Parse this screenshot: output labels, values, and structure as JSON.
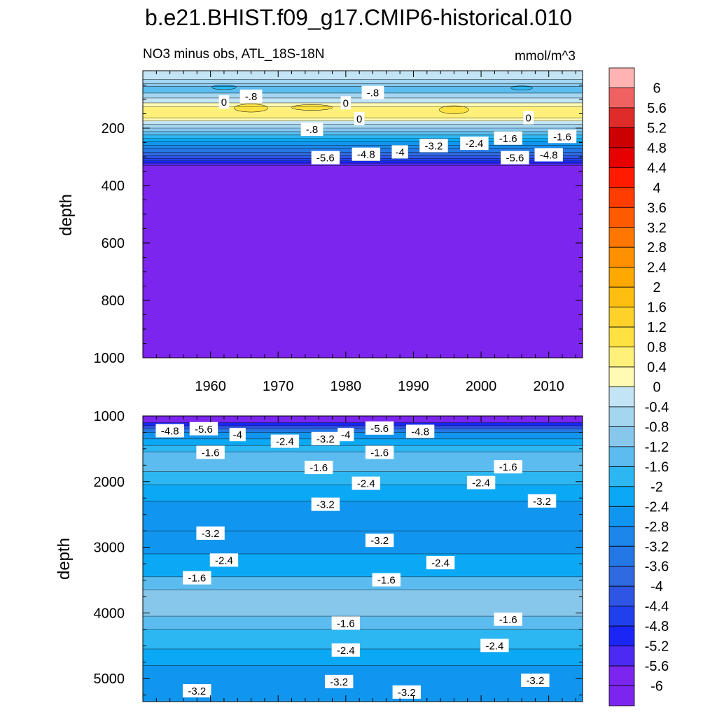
{
  "title": "b.e21.BHIST.f09_g17.CMIP6-historical.010",
  "chart_data": [
    {
      "type": "contour",
      "subtitle_left": "NO3 minus obs, ATL_18S-18N",
      "subtitle_right": "mmol/m^3",
      "ylabel": "depth",
      "xlim": [
        1950,
        2015
      ],
      "ylim": [
        1000,
        0
      ],
      "x_ticks": [
        1960,
        1970,
        1980,
        1990,
        2000,
        2010
      ],
      "x_tick_labels": [
        "1960",
        "1970",
        "1980",
        "1990",
        "2000",
        "2010"
      ],
      "y_ticks": [
        200,
        400,
        600,
        800,
        1000
      ],
      "y_tick_labels": [
        "200",
        "400",
        "600",
        "800",
        "1000"
      ],
      "bands": [
        {
          "top": 0,
          "bottom": 30,
          "level": "-0.4"
        },
        {
          "top": 30,
          "bottom": 45,
          "level": "-0.8"
        },
        {
          "top": 45,
          "bottom": 55,
          "level": "-1.2"
        },
        {
          "top": 55,
          "bottom": 78,
          "level": "-1.6"
        },
        {
          "top": 78,
          "bottom": 95,
          "level": "-0.8"
        },
        {
          "top": 95,
          "bottom": 112,
          "level": "-0.4"
        },
        {
          "top": 112,
          "bottom": 125,
          "level": "0"
        },
        {
          "top": 125,
          "bottom": 165,
          "level": "0.4"
        },
        {
          "top": 165,
          "bottom": 175,
          "level": "0"
        },
        {
          "top": 175,
          "bottom": 187,
          "level": "-0.4"
        },
        {
          "top": 187,
          "bottom": 200,
          "level": "-0.8"
        },
        {
          "top": 200,
          "bottom": 212,
          "level": "-1.2"
        },
        {
          "top": 212,
          "bottom": 224,
          "level": "-1.6"
        },
        {
          "top": 224,
          "bottom": 236,
          "level": "-2"
        },
        {
          "top": 236,
          "bottom": 248,
          "level": "-2.4"
        },
        {
          "top": 248,
          "bottom": 260,
          "level": "-2.8"
        },
        {
          "top": 260,
          "bottom": 272,
          "level": "-3.2"
        },
        {
          "top": 272,
          "bottom": 284,
          "level": "-3.6"
        },
        {
          "top": 284,
          "bottom": 296,
          "level": "-4"
        },
        {
          "top": 296,
          "bottom": 306,
          "level": "-4.4"
        },
        {
          "top": 306,
          "bottom": 314,
          "level": "-4.8"
        },
        {
          "top": 314,
          "bottom": 322,
          "level": "-5.2"
        },
        {
          "top": 322,
          "bottom": 330,
          "level": "-5.6"
        },
        {
          "top": 330,
          "bottom": 1000,
          "level": "-6"
        }
      ],
      "blobs": [
        {
          "x": 1966,
          "depth": 130,
          "level": "0.8",
          "rx": 2.5,
          "ry": 14
        },
        {
          "x": 1975,
          "depth": 128,
          "level": "0.8",
          "rx": 3,
          "ry": 10
        },
        {
          "x": 1996,
          "depth": 136,
          "level": "0.8",
          "rx": 2.2,
          "ry": 14
        },
        {
          "x": 1962,
          "depth": 58,
          "level": "-2",
          "rx": 1.8,
          "ry": 8
        },
        {
          "x": 1984,
          "depth": 62,
          "level": "-2",
          "rx": 1.5,
          "ry": 7
        },
        {
          "x": 2006,
          "depth": 60,
          "level": "-2",
          "rx": 1.6,
          "ry": 7
        }
      ],
      "contour_labels": [
        {
          "text": "0",
          "x": 1962,
          "depth": 110
        },
        {
          "text": "-.8",
          "x": 1966,
          "depth": 90
        },
        {
          "text": "0",
          "x": 1980,
          "depth": 113
        },
        {
          "text": "-.8",
          "x": 1984,
          "depth": 77
        },
        {
          "text": "0",
          "x": 1982,
          "depth": 168
        },
        {
          "text": "0",
          "x": 2007,
          "depth": 165
        },
        {
          "text": "-.8",
          "x": 1975,
          "depth": 205
        },
        {
          "text": "-1.6",
          "x": 2004,
          "depth": 236
        },
        {
          "text": "-1.6",
          "x": 2012,
          "depth": 230
        },
        {
          "text": "-2.4",
          "x": 1999,
          "depth": 254
        },
        {
          "text": "-3.2",
          "x": 1993,
          "depth": 262
        },
        {
          "text": "-4",
          "x": 1988,
          "depth": 284
        },
        {
          "text": "-4.8",
          "x": 1983,
          "depth": 292
        },
        {
          "text": "-5.6",
          "x": 1977,
          "depth": 304
        },
        {
          "text": "-5.6",
          "x": 2005,
          "depth": 304
        },
        {
          "text": "-4.8",
          "x": 2010,
          "depth": 294
        }
      ]
    },
    {
      "type": "contour",
      "ylabel": "depth",
      "xlim": [
        1950,
        2015
      ],
      "ylim": [
        5350,
        1000
      ],
      "x_ticks": [
        1960,
        1970,
        1980,
        1990,
        2000,
        2010
      ],
      "y_ticks": [
        1000,
        2000,
        3000,
        4000,
        5000
      ],
      "y_tick_labels": [
        "1000",
        "2000",
        "3000",
        "4000",
        "5000"
      ],
      "bands": [
        {
          "top": 1000,
          "bottom": 1100,
          "level": "-6"
        },
        {
          "top": 1100,
          "bottom": 1150,
          "level": "-5.2"
        },
        {
          "top": 1150,
          "bottom": 1200,
          "level": "-4.4"
        },
        {
          "top": 1200,
          "bottom": 1250,
          "level": "-3.6"
        },
        {
          "top": 1250,
          "bottom": 1350,
          "level": "-2.8"
        },
        {
          "top": 1350,
          "bottom": 1450,
          "level": "-2.4"
        },
        {
          "top": 1450,
          "bottom": 1550,
          "level": "-2"
        },
        {
          "top": 1550,
          "bottom": 1850,
          "level": "-1.6"
        },
        {
          "top": 1850,
          "bottom": 2050,
          "level": "-2"
        },
        {
          "top": 2050,
          "bottom": 2300,
          "level": "-2.4"
        },
        {
          "top": 2300,
          "bottom": 2750,
          "level": "-2.8"
        },
        {
          "top": 2750,
          "bottom": 3100,
          "level": "-2.8"
        },
        {
          "top": 3100,
          "bottom": 3450,
          "level": "-2.4"
        },
        {
          "top": 3450,
          "bottom": 3650,
          "level": "-1.6"
        },
        {
          "top": 3650,
          "bottom": 4050,
          "level": "-1.2"
        },
        {
          "top": 4050,
          "bottom": 4250,
          "level": "-1.6"
        },
        {
          "top": 4250,
          "bottom": 4550,
          "level": "-2"
        },
        {
          "top": 4550,
          "bottom": 4800,
          "level": "-2.4"
        },
        {
          "top": 4800,
          "bottom": 5350,
          "level": "-2.8"
        }
      ],
      "contour_labels": [
        {
          "text": "-4.8",
          "x": 1954,
          "depth": 1230
        },
        {
          "text": "-5.6",
          "x": 1959,
          "depth": 1200
        },
        {
          "text": "-4",
          "x": 1964,
          "depth": 1290
        },
        {
          "text": "-2.4",
          "x": 1971,
          "depth": 1390
        },
        {
          "text": "-3.2",
          "x": 1977,
          "depth": 1350
        },
        {
          "text": "-4",
          "x": 1980,
          "depth": 1290
        },
        {
          "text": "-5.6",
          "x": 1985,
          "depth": 1190
        },
        {
          "text": "-4.8",
          "x": 1991,
          "depth": 1240
        },
        {
          "text": "-1.6",
          "x": 1960,
          "depth": 1560
        },
        {
          "text": "-1.6",
          "x": 1985,
          "depth": 1560
        },
        {
          "text": "-1.6",
          "x": 1976,
          "depth": 1790
        },
        {
          "text": "-1.6",
          "x": 2004,
          "depth": 1780
        },
        {
          "text": "-2.4",
          "x": 1983,
          "depth": 2030
        },
        {
          "text": "-2.4",
          "x": 2000,
          "depth": 2020
        },
        {
          "text": "-3.2",
          "x": 1977,
          "depth": 2350
        },
        {
          "text": "-3.2",
          "x": 2009,
          "depth": 2300
        },
        {
          "text": "-3.2",
          "x": 1960,
          "depth": 2790
        },
        {
          "text": "-3.2",
          "x": 1985,
          "depth": 2900
        },
        {
          "text": "-2.4",
          "x": 1962,
          "depth": 3200
        },
        {
          "text": "-2.4",
          "x": 1994,
          "depth": 3240
        },
        {
          "text": "-1.6",
          "x": 1958,
          "depth": 3470
        },
        {
          "text": "-1.6",
          "x": 1986,
          "depth": 3500
        },
        {
          "text": "-1.6",
          "x": 1980,
          "depth": 4160
        },
        {
          "text": "-1.6",
          "x": 2004,
          "depth": 4100
        },
        {
          "text": "-2.4",
          "x": 1980,
          "depth": 4570
        },
        {
          "text": "-2.4",
          "x": 2002,
          "depth": 4500
        },
        {
          "text": "-3.2",
          "x": 1958,
          "depth": 5190
        },
        {
          "text": "-3.2",
          "x": 1979,
          "depth": 5050
        },
        {
          "text": "-3.2",
          "x": 1989,
          "depth": 5210
        },
        {
          "text": "-3.2",
          "x": 2008,
          "depth": 5030
        }
      ]
    }
  ],
  "colorbar": {
    "levels": [
      "6",
      "5.6",
      "5.2",
      "4.8",
      "4.4",
      "4",
      "3.6",
      "3.2",
      "2.8",
      "2.4",
      "2",
      "1.6",
      "1.2",
      "0.8",
      "0.4",
      "0",
      "-0.4",
      "-0.8",
      "-1.2",
      "-1.6",
      "-2",
      "-2.4",
      "-2.8",
      "-3.2",
      "-3.6",
      "-4",
      "-4.4",
      "-4.8",
      "-5.2",
      "-5.6",
      "-6"
    ],
    "colors": [
      "#ffb3b3",
      "#f06262",
      "#e02b2b",
      "#cc0000",
      "#e60000",
      "#ff1a00",
      "#ff3d00",
      "#ff5a00",
      "#ff7700",
      "#ff9000",
      "#ffa800",
      "#ffbe10",
      "#ffd22a",
      "#ffe242",
      "#fff07a",
      "#fffbb4",
      "#c2e4f4",
      "#a4d6f0",
      "#88c7ec",
      "#5cbcf0",
      "#2cb6f2",
      "#0ba9f5",
      "#1196f0",
      "#1c86ea",
      "#2478e6",
      "#2f6ae1",
      "#2e55e4",
      "#2040ee",
      "#1a26f6",
      "#4c2af2",
      "#7c25ee"
    ],
    "value_map": {
      "6": "#ffb3b3",
      "5.6": "#f06262",
      "5.2": "#e02b2b",
      "4.8": "#cc0000",
      "4.4": "#e60000",
      "4": "#ff1a00",
      "3.6": "#ff3d00",
      "3.2": "#ff5a00",
      "2.8": "#ff7700",
      "2.4": "#ff9000",
      "2": "#ffa800",
      "1.6": "#ffbe10",
      "1.2": "#ffd22a",
      "0.8": "#ffe242",
      "0.4": "#fff07a",
      "0": "#fffbb4",
      "-0.4": "#c2e4f4",
      "-0.8": "#a4d6f0",
      "-1.2": "#88c7ec",
      "-1.6": "#5cbcf0",
      "-2": "#2cb6f2",
      "-2.4": "#0ba9f5",
      "-2.8": "#1196f0",
      "-3.2": "#1c86ea",
      "-3.6": "#2478e6",
      "-4": "#2f6ae1",
      "-4.4": "#2e55e4",
      "-4.8": "#2040ee",
      "-5.2": "#1a26f6",
      "-5.6": "#4c2af2",
      "-6": "#7c25ee"
    }
  }
}
